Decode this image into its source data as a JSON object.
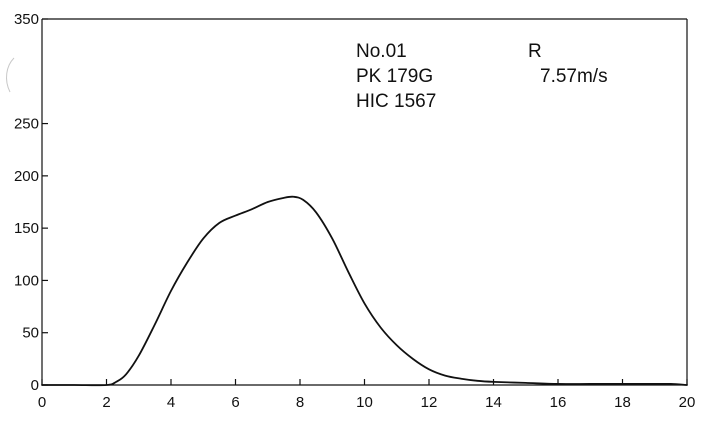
{
  "chart_data": {
    "type": "line",
    "title": "",
    "xlabel": "",
    "ylabel": "",
    "xlim": [
      0,
      20
    ],
    "ylim": [
      0,
      350
    ],
    "x_ticks": [
      0,
      2,
      4,
      6,
      8,
      10,
      12,
      14,
      16,
      18,
      20
    ],
    "y_ticks": [
      0,
      50,
      100,
      150,
      200,
      250,
      350
    ],
    "grid": false,
    "annotations": {
      "row1_left": "No.01",
      "row1_right": "R",
      "row2_left": "PK 179G",
      "row2_right": "7.57m/s",
      "row3_left": "HIC 1567"
    },
    "series": [
      {
        "x": [
          0,
          1,
          2,
          2.3,
          2.6,
          3,
          3.5,
          4,
          4.5,
          5,
          5.5,
          6,
          6.5,
          7,
          7.5,
          7.8,
          8.1,
          8.5,
          9,
          9.5,
          10,
          10.5,
          11,
          11.5,
          12,
          12.5,
          13,
          13.5,
          14,
          15,
          16,
          17,
          18,
          19,
          19.5,
          20
        ],
        "y": [
          0,
          0,
          0,
          3,
          10,
          28,
          58,
          90,
          117,
          140,
          155,
          162,
          168,
          175,
          179,
          180,
          177,
          165,
          140,
          108,
          78,
          55,
          38,
          25,
          15,
          9,
          6,
          4,
          3,
          2,
          1,
          1,
          1,
          1,
          1,
          0
        ],
        "color": "#111111"
      }
    ]
  }
}
